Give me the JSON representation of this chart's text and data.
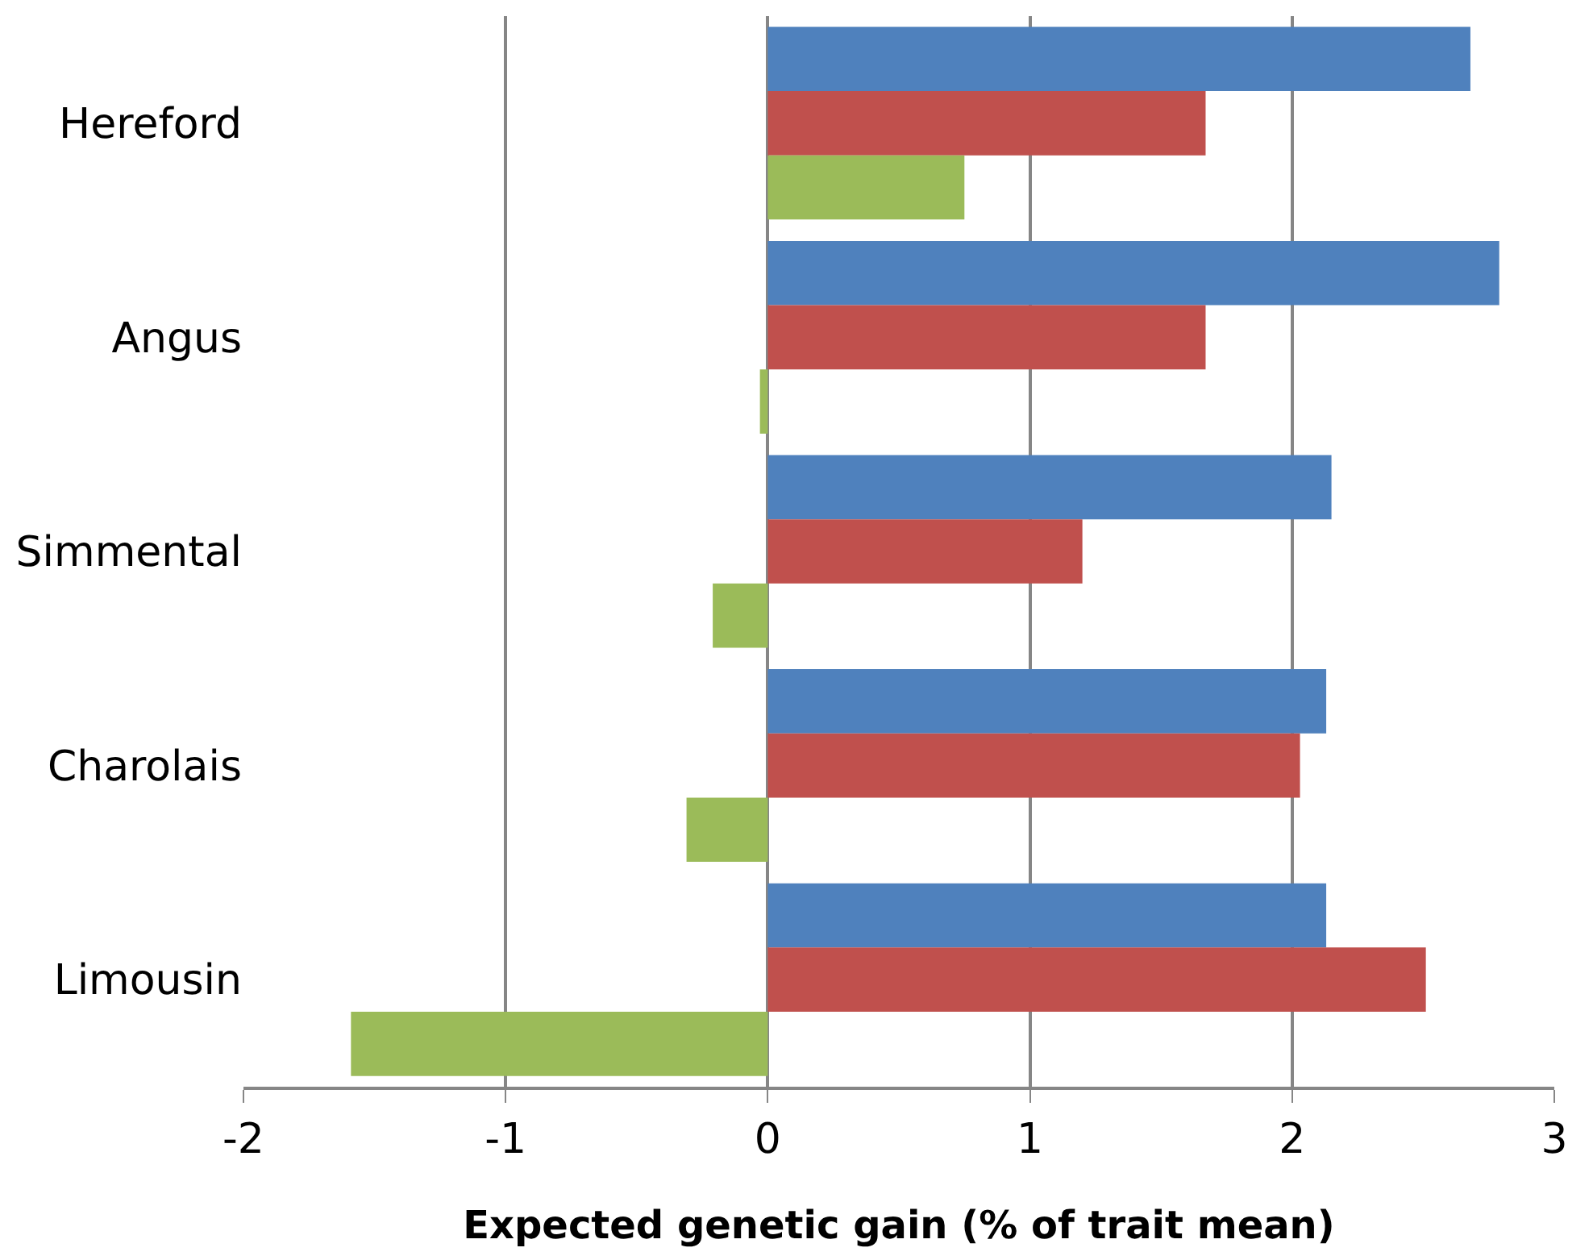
{
  "chart_data": {
    "type": "bar",
    "orientation": "horizontal",
    "xlabel": "Expected genetic gain (% of trait mean)",
    "categories": [
      "Hereford",
      "Angus",
      "Simmental",
      "Charolais",
      "Limousin"
    ],
    "series": [
      {
        "color": "#4f81bd",
        "values": [
          2.68,
          2.79,
          2.15,
          2.13,
          2.13
        ]
      },
      {
        "color": "#c0504d",
        "values": [
          1.67,
          1.67,
          1.2,
          2.03,
          2.51
        ]
      },
      {
        "color": "#9bbb59",
        "values": [
          0.75,
          -0.03,
          -0.21,
          -0.31,
          -1.59
        ]
      }
    ],
    "xlim": [
      -2,
      3
    ],
    "xticks": [
      -2,
      -1,
      0,
      1,
      2,
      3
    ],
    "grid": "x"
  }
}
